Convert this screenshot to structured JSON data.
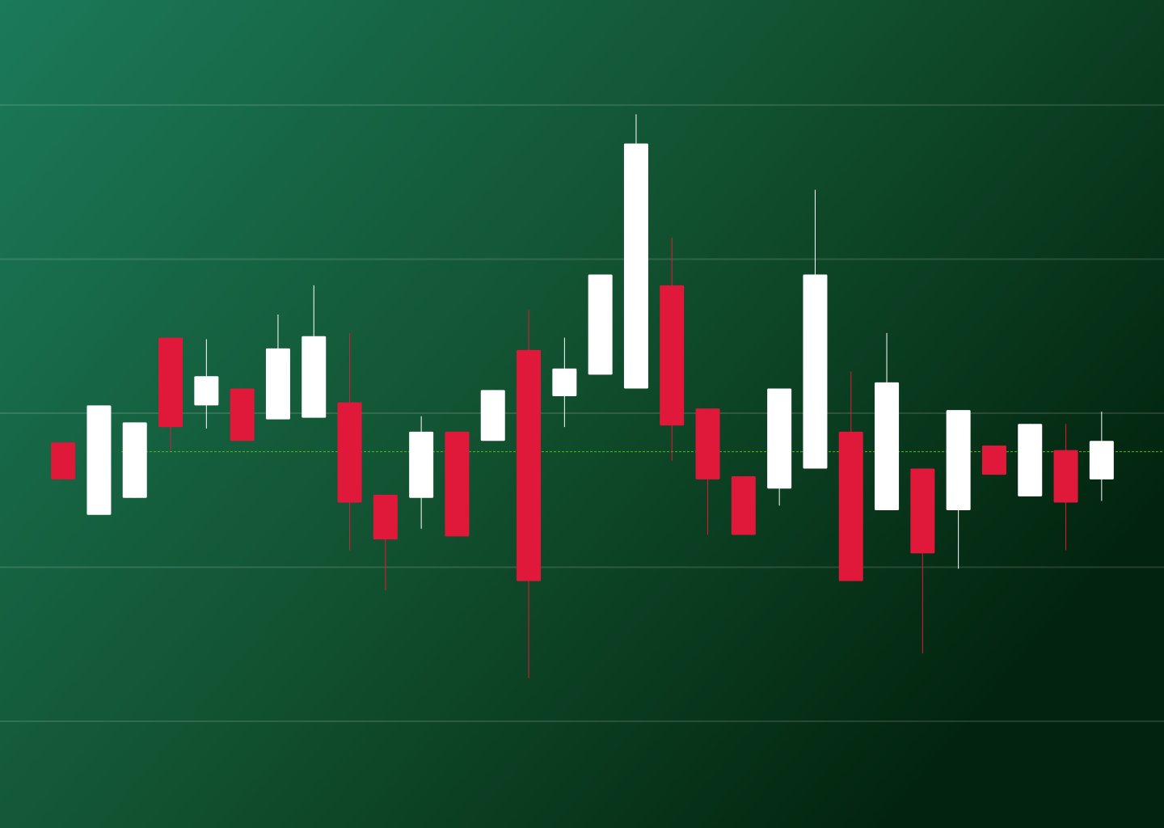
{
  "chart_data": {
    "type": "candlestick",
    "categories": [
      null,
      null,
      null,
      null,
      null,
      null,
      null,
      null,
      null,
      null,
      null,
      null,
      null,
      null,
      null,
      null,
      null,
      null,
      null,
      null,
      null,
      null,
      null,
      null,
      null,
      null,
      null,
      null,
      null,
      null
    ],
    "open": [
      18.1,
      13.4,
      14.5,
      24.9,
      20.5,
      21.6,
      19.6,
      19.7,
      20.7,
      14.7,
      14.5,
      18.8,
      18.2,
      24.1,
      21.1,
      22.5,
      21.6,
      28.3,
      20.3,
      15.9,
      15.1,
      16.4,
      18.8,
      13.7,
      16.4,
      13.7,
      17.9,
      14.6,
      17.6,
      15.7
    ],
    "high": [
      18.1,
      20.5,
      19.4,
      24.9,
      24.8,
      21.6,
      26.4,
      28.3,
      25.2,
      14.7,
      19.8,
      18.8,
      21.5,
      26.7,
      24.9,
      29.0,
      39.4,
      31.4,
      20.3,
      15.9,
      21.6,
      34.5,
      22.7,
      25.2,
      16.4,
      20.2,
      17.9,
      19.3,
      19.3,
      20.1
    ],
    "low": [
      15.7,
      13.4,
      14.5,
      17.6,
      19.0,
      18.2,
      19.6,
      19.7,
      11.1,
      8.5,
      12.5,
      12.0,
      18.2,
      2.8,
      19.1,
      22.5,
      21.6,
      16.9,
      12.1,
      12.1,
      14.0,
      16.4,
      9.1,
      13.7,
      4.4,
      9.9,
      16.0,
      14.6,
      11.1,
      14.3
    ],
    "close": [
      15.7,
      20.5,
      19.4,
      19.1,
      22.4,
      18.2,
      24.2,
      25.0,
      14.2,
      11.8,
      18.8,
      12.0,
      21.5,
      9.1,
      22.9,
      29.0,
      37.5,
      19.2,
      15.7,
      12.1,
      21.6,
      29.0,
      9.1,
      22.0,
      10.9,
      20.2,
      16.0,
      19.3,
      14.2,
      18.2
    ],
    "up_color": "#ffffff",
    "down_color": "#e0193a",
    "ylim": [
      -6.93,
      46.82
    ],
    "yticks": [
      0,
      10,
      20,
      30,
      40
    ],
    "grid": true,
    "reference_line": 17.5,
    "reference_color": "#4fb81e"
  }
}
